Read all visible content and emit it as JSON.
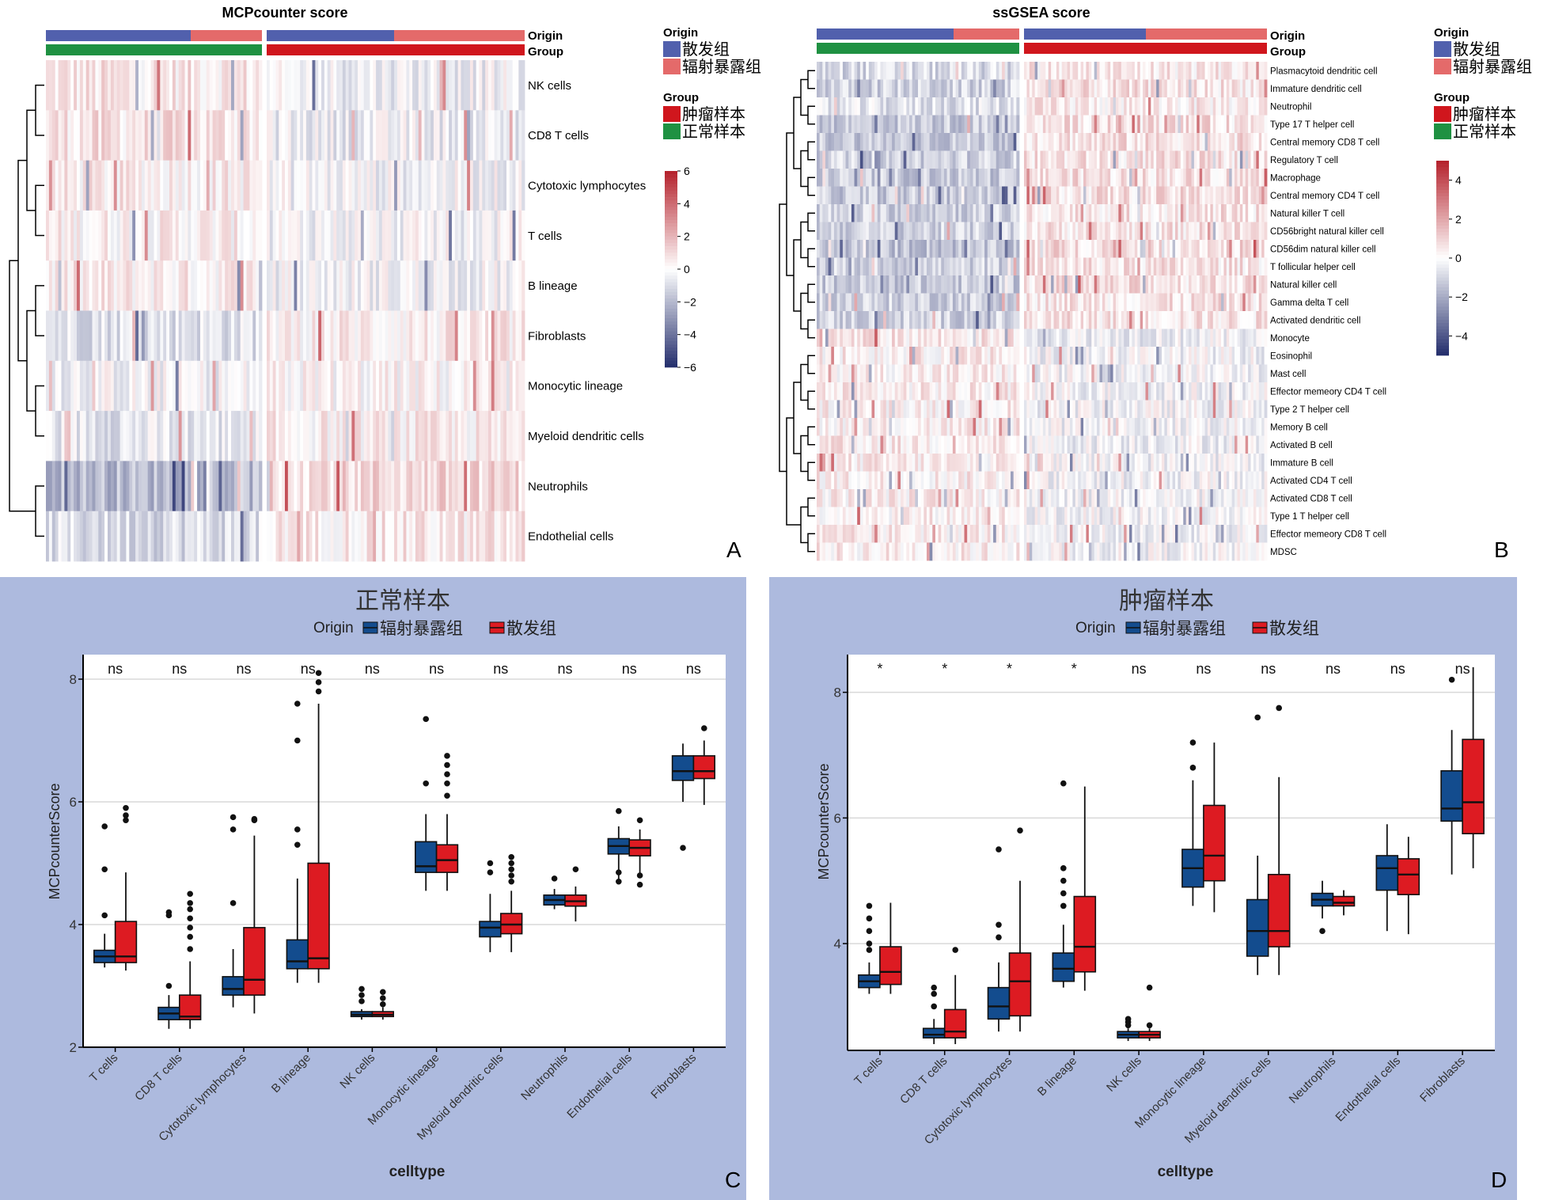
{
  "colors": {
    "sporadic": "#5160ad",
    "radiation": "#e46a6a",
    "tumor": "#d0161d",
    "normal": "#1f9142",
    "heat_low": "#232d6c",
    "heat_mid": "#ffffff",
    "heat_high": "#b4202a",
    "box_blue": "#134c8e",
    "box_red": "#dd1b22",
    "panel_bg": "#adbade"
  },
  "panel_letters": {
    "a": "A",
    "b": "B",
    "c": "C",
    "d": "D"
  },
  "annotation_labels": {
    "origin": "Origin",
    "group": "Group"
  },
  "legend": {
    "origin_title": "Origin",
    "origin_items": [
      "散发组",
      "辐射暴露组"
    ],
    "group_title": "Group",
    "group_items": [
      "肿瘤样本",
      "正常样本"
    ]
  },
  "chart_data": [
    {
      "type": "heatmap",
      "title": "MCPcounter score",
      "rows": [
        "NK cells",
        "CD8 T cells",
        "Cytotoxic lymphocytes",
        "T cells",
        "B lineage",
        "Fibroblasts",
        "Monocytic lineage",
        "Myeloid dendritic cells",
        "Neutrophils",
        "Endothelial cells"
      ],
      "colorbar_ticks": [
        "6",
        "4",
        "2",
        "0",
        "−2",
        "−4",
        "−6"
      ],
      "colorbar_range": [
        -6,
        6
      ],
      "row_trend": [
        0.3,
        0.35,
        0.2,
        0.15,
        0.2,
        -0.35,
        -0.1,
        -0.3,
        -0.9,
        -0.45
      ]
    },
    {
      "type": "heatmap",
      "title": "ssGSEA score",
      "rows": [
        "Plasmacytoid dendritic cell",
        "Immature dendritic cell",
        "Neutrophil",
        "Type 17 T helper cell",
        "Central memory CD8 T cell",
        "Regulatory T cell",
        "Macrophage",
        "Central memory CD4 T cell",
        "Natural killer T cell",
        "CD56bright natural killer cell",
        "CD56dim natural killer cell",
        "T follicular helper cell",
        "Natural killer cell",
        "Gamma delta T cell",
        "Activated dendritic cell",
        "Monocyte",
        "Eosinophil",
        "Mast cell",
        "Effector memeory CD4 T cell",
        "Type 2 T helper cell",
        "Memory B cell",
        "Activated B cell",
        "Immature  B cell",
        "Activated CD4 T cell",
        "Activated CD8 T cell",
        "Type 1 T helper cell",
        "Effector memeory CD8 T cell",
        "MDSC"
      ],
      "colorbar_ticks": [
        "4",
        "2",
        "0",
        "−2",
        "−4"
      ],
      "colorbar_range": [
        -5,
        5
      ],
      "row_trend": [
        -0.5,
        -0.6,
        -0.4,
        -0.7,
        -0.7,
        -0.6,
        -0.7,
        -0.7,
        -0.6,
        -0.6,
        -0.8,
        -0.6,
        -0.7,
        -0.6,
        -0.6,
        0.3,
        0.2,
        0.2,
        0.2,
        0.2,
        0.2,
        0.25,
        0.2,
        0.2,
        0.2,
        0.2,
        0.2,
        0.2
      ]
    },
    {
      "type": "box",
      "title": "正常样本",
      "legend_title": "Origin",
      "series": [
        {
          "name": "辐射暴露组"
        },
        {
          "name": "散发组"
        }
      ],
      "xlabel": "celltype",
      "ylabel": "MCPcounterScore",
      "ylim": [
        2,
        8.4
      ],
      "yticks": [
        2,
        4,
        6,
        8
      ],
      "categories": [
        "T cells",
        "CD8 T cells",
        "Cytotoxic lymphocytes",
        "B lineage",
        "NK cells",
        "Monocytic lineage",
        "Myeloid dendritic cells",
        "Neutrophils",
        "Endothelial cells",
        "Fibroblasts"
      ],
      "significance": [
        "ns",
        "ns",
        "ns",
        "ns",
        "ns",
        "ns",
        "ns",
        "ns",
        "ns",
        "ns"
      ],
      "boxes": [
        [
          [
            3.3,
            3.38,
            3.48,
            3.58,
            3.85,
            [
              4.15,
              4.9,
              5.6
            ]
          ],
          [
            3.25,
            3.38,
            3.48,
            4.05,
            4.85,
            [
              5.7,
              5.78,
              5.9
            ]
          ]
        ],
        [
          [
            2.3,
            2.45,
            2.55,
            2.65,
            2.85,
            [
              3.0,
              4.15,
              4.2
            ]
          ],
          [
            2.3,
            2.45,
            2.5,
            2.85,
            3.4,
            [
              3.6,
              3.8,
              3.95,
              4.1,
              4.25,
              4.35,
              4.5
            ]
          ]
        ],
        [
          [
            2.65,
            2.85,
            2.95,
            3.15,
            3.6,
            [
              4.35,
              5.55,
              5.75
            ]
          ],
          [
            2.55,
            2.85,
            3.1,
            3.95,
            5.45,
            [
              5.7,
              5.72
            ]
          ]
        ],
        [
          [
            3.05,
            3.28,
            3.4,
            3.75,
            4.75,
            [
              5.3,
              5.55,
              7.0,
              7.6
            ]
          ],
          [
            3.05,
            3.28,
            3.45,
            5.0,
            7.6,
            [
              7.8,
              7.95,
              8.1
            ]
          ]
        ],
        [
          [
            2.45,
            2.5,
            2.53,
            2.58,
            2.62,
            [
              2.75,
              2.85,
              2.95
            ]
          ],
          [
            2.45,
            2.5,
            2.53,
            2.58,
            2.65,
            [
              2.7,
              2.8,
              2.9
            ]
          ]
        ],
        [
          [
            4.55,
            4.85,
            4.95,
            5.35,
            5.8,
            [
              6.3,
              7.35
            ]
          ],
          [
            4.55,
            4.85,
            5.05,
            5.3,
            5.8,
            [
              6.1,
              6.3,
              6.45,
              6.6,
              6.75
            ]
          ]
        ],
        [
          [
            3.55,
            3.8,
            3.95,
            4.05,
            4.5,
            [
              4.85,
              5.0
            ]
          ],
          [
            3.55,
            3.85,
            4.0,
            4.18,
            4.55,
            [
              4.7,
              4.8,
              4.9,
              5.0,
              5.1
            ]
          ]
        ],
        [
          [
            4.25,
            4.32,
            4.4,
            4.48,
            4.58,
            [
              4.75
            ]
          ],
          [
            4.05,
            4.3,
            4.38,
            4.48,
            4.62,
            [
              4.9
            ]
          ]
        ],
        [
          [
            4.7,
            5.15,
            5.28,
            5.4,
            5.6,
            [
              4.7,
              4.85,
              5.85
            ]
          ],
          [
            4.8,
            5.12,
            5.25,
            5.38,
            5.55,
            [
              4.65,
              4.8,
              5.7
            ]
          ]
        ],
        [
          [
            6.0,
            6.35,
            6.5,
            6.75,
            6.95,
            [
              5.25
            ]
          ],
          [
            5.95,
            6.38,
            6.5,
            6.75,
            7.0,
            [
              7.2
            ]
          ]
        ]
      ]
    },
    {
      "type": "box",
      "title": "肿瘤样本",
      "legend_title": "Origin",
      "series": [
        {
          "name": "辐射暴露组"
        },
        {
          "name": "散发组"
        }
      ],
      "xlabel": "celltype",
      "ylabel": "MCPcounterScore",
      "ylim": [
        2.3,
        8.6
      ],
      "yticks": [
        4,
        6,
        8
      ],
      "categories": [
        "T cells",
        "CD8 T cells",
        "Cytotoxic lymphocytes",
        "B lineage",
        "NK cells",
        "Monocytic lineage",
        "Myeloid dendritic cells",
        "Neutrophils",
        "Endothelial cells",
        "Fibroblasts"
      ],
      "significance": [
        "*",
        "*",
        "*",
        "*",
        "ns",
        "ns",
        "ns",
        "ns",
        "ns",
        "ns"
      ],
      "boxes": [
        [
          [
            3.2,
            3.3,
            3.4,
            3.5,
            3.7,
            [
              3.9,
              4.0,
              4.2,
              4.4,
              4.6
            ]
          ],
          [
            3.2,
            3.35,
            3.55,
            3.95,
            4.65,
            []
          ]
        ],
        [
          [
            2.4,
            2.5,
            2.55,
            2.65,
            2.8,
            [
              3.0,
              3.2,
              3.3
            ]
          ],
          [
            2.4,
            2.5,
            2.6,
            2.95,
            3.5,
            [
              3.9
            ]
          ]
        ],
        [
          [
            2.6,
            2.8,
            3.0,
            3.3,
            3.7,
            [
              4.1,
              4.3,
              5.5
            ]
          ],
          [
            2.6,
            2.85,
            3.4,
            3.85,
            5.0,
            [
              5.8
            ]
          ]
        ],
        [
          [
            3.3,
            3.4,
            3.6,
            3.85,
            4.3,
            [
              4.6,
              4.8,
              5.0,
              5.2,
              6.55
            ]
          ],
          [
            3.25,
            3.55,
            3.95,
            4.75,
            6.5,
            []
          ]
        ],
        [
          [
            2.45,
            2.5,
            2.55,
            2.6,
            2.65,
            [
              2.7,
              2.75,
              2.8
            ]
          ],
          [
            2.45,
            2.5,
            2.55,
            2.6,
            2.65,
            [
              2.7,
              3.3
            ]
          ]
        ],
        [
          [
            4.6,
            4.9,
            5.2,
            5.5,
            6.6,
            [
              6.8,
              7.2
            ]
          ],
          [
            4.5,
            5.0,
            5.4,
            6.2,
            7.2,
            []
          ]
        ],
        [
          [
            3.5,
            3.8,
            4.2,
            4.7,
            5.4,
            [
              7.6
            ]
          ],
          [
            3.5,
            3.95,
            4.2,
            5.1,
            6.65,
            [
              7.75
            ]
          ]
        ],
        [
          [
            4.4,
            4.6,
            4.7,
            4.8,
            5.0,
            [
              4.2
            ]
          ],
          [
            4.45,
            4.6,
            4.65,
            4.75,
            4.85,
            []
          ]
        ],
        [
          [
            4.2,
            4.85,
            5.2,
            5.4,
            5.9,
            []
          ],
          [
            4.15,
            4.78,
            5.1,
            5.35,
            5.7,
            []
          ]
        ],
        [
          [
            5.1,
            5.95,
            6.15,
            6.75,
            7.4,
            [
              8.2
            ]
          ],
          [
            5.2,
            5.75,
            6.25,
            7.25,
            8.4,
            []
          ]
        ]
      ]
    }
  ]
}
